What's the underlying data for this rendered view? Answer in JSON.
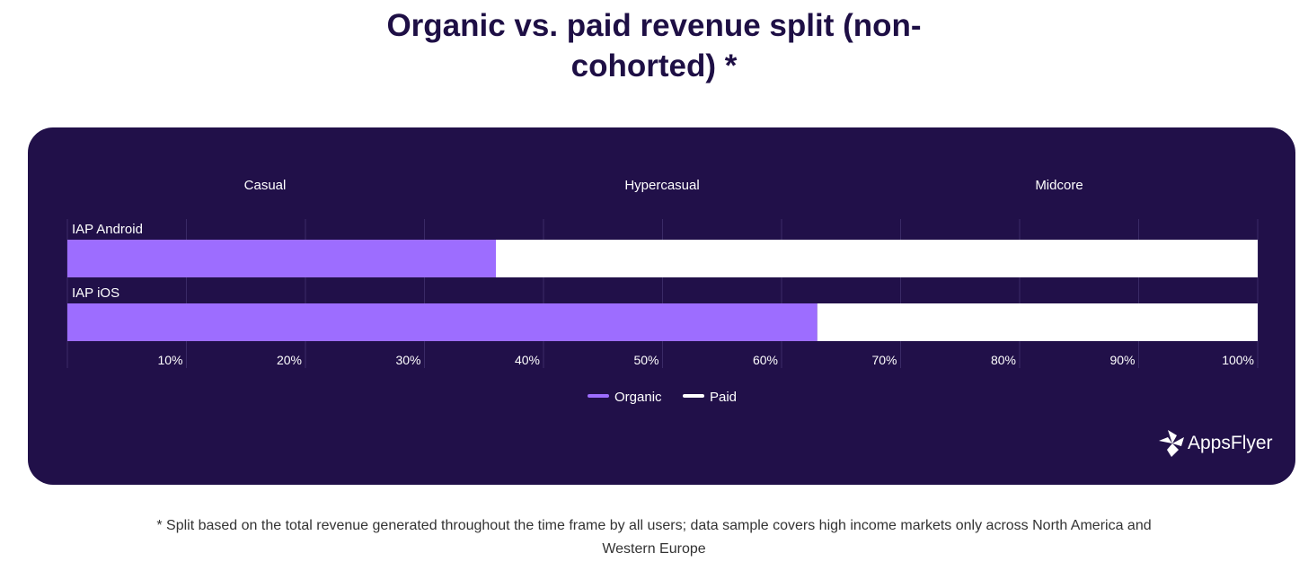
{
  "title": "Organic vs. paid revenue split (non-cohorted) *",
  "footnote": "* Split based on the total revenue generated throughout the time frame by all users; data sample covers high income markets only across North America and Western Europe",
  "logo_text": "AppsFlyer",
  "colors": {
    "organic": "#9d6dff",
    "paid": "#ffffff",
    "background": "#211049"
  },
  "chart_data": {
    "type": "bar",
    "orientation": "horizontal-stacked-100",
    "column_headers": [
      "Casual",
      "Hypercasual",
      "Midcore"
    ],
    "categories": [
      "IAP Android",
      "IAP iOS"
    ],
    "series": [
      {
        "name": "Organic",
        "values": [
          36,
          63
        ]
      },
      {
        "name": "Paid",
        "values": [
          64,
          37
        ]
      }
    ],
    "xticks": [
      "10%",
      "20%",
      "30%",
      "40%",
      "50%",
      "60%",
      "70%",
      "80%",
      "90%",
      "100%"
    ],
    "xlim": [
      0,
      100
    ],
    "grid": true,
    "legend": "bottom-center"
  }
}
